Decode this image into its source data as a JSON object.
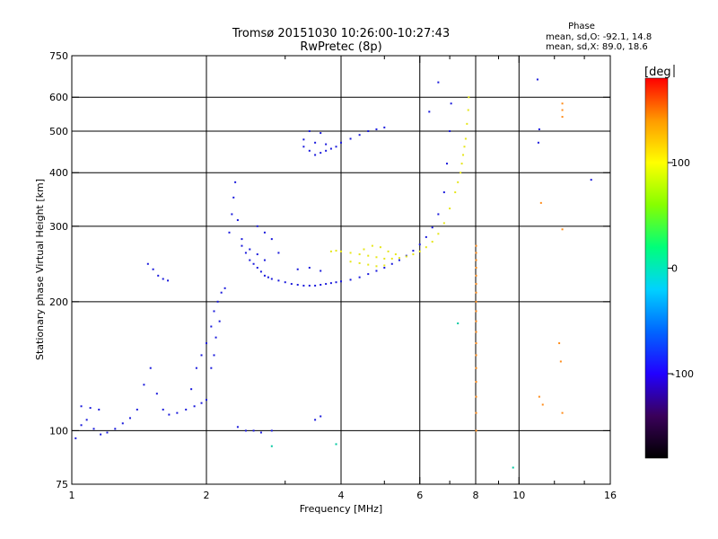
{
  "chart_data": {
    "type": "scatter",
    "title": "Tromsø 20151030 10:26:00-10:27:43",
    "subtitle": "RwPretec (8p)",
    "xlabel": "Frequency [MHz]",
    "ylabel": "Stationary phase Virtual Height [km]",
    "x_scale": "log2",
    "y_scale": "log",
    "xlim": [
      1,
      16
    ],
    "ylim": [
      75,
      750
    ],
    "x_ticks": [
      1,
      2,
      4,
      6,
      8,
      10,
      16
    ],
    "x_tick_labels": [
      "1",
      "2",
      "4",
      "6",
      "8",
      "10",
      "16"
    ],
    "x_grid": [
      2,
      4,
      6,
      8,
      10
    ],
    "y_ticks": [
      75,
      100,
      200,
      300,
      400,
      500,
      600,
      750
    ],
    "y_tick_labels": [
      "75",
      "100",
      "200",
      "300",
      "400",
      "500",
      "600",
      "750"
    ],
    "y_grid": [
      100,
      200,
      300,
      400,
      500,
      600
    ],
    "grid": true,
    "phase_stats": {
      "title": "Phase",
      "o_line": "mean, sd,O: -92.1, 14.8",
      "x_line": "mean, sd,X:  89.0, 18.6"
    },
    "colorbar": {
      "label": "[deg",
      "range": [
        -180,
        180
      ],
      "ticks": [
        100,
        0,
        -100
      ],
      "tick_labels": [
        "100",
        "0",
        "-100"
      ],
      "colormap": [
        "#000000",
        "#3a005a",
        "#2200ff",
        "#0066ff",
        "#00d2ff",
        "#00ff7a",
        "#86ff00",
        "#ffff00",
        "#ff9a00",
        "#ff0000"
      ]
    },
    "series": [
      {
        "phase": -100,
        "color": "#1a1adc",
        "points": [
          [
            1.02,
            96
          ],
          [
            1.05,
            103
          ],
          [
            1.08,
            106
          ],
          [
            1.12,
            101
          ],
          [
            1.16,
            98
          ],
          [
            1.2,
            99
          ],
          [
            1.25,
            101
          ],
          [
            1.3,
            104
          ],
          [
            1.35,
            107
          ],
          [
            1.4,
            112
          ],
          [
            1.45,
            128
          ],
          [
            1.5,
            140
          ],
          [
            1.55,
            122
          ],
          [
            1.6,
            112
          ],
          [
            1.65,
            109
          ],
          [
            1.72,
            110
          ],
          [
            1.8,
            112
          ],
          [
            1.88,
            114
          ],
          [
            1.95,
            116
          ],
          [
            2.0,
            118
          ],
          [
            1.05,
            114
          ],
          [
            1.1,
            113
          ],
          [
            1.15,
            112
          ],
          [
            1.48,
            245
          ],
          [
            1.52,
            238
          ],
          [
            1.56,
            230
          ],
          [
            1.6,
            226
          ],
          [
            1.64,
            224
          ],
          [
            1.85,
            125
          ],
          [
            1.9,
            140
          ],
          [
            1.95,
            150
          ],
          [
            2.0,
            160
          ],
          [
            2.05,
            175
          ],
          [
            2.08,
            190
          ],
          [
            2.12,
            200
          ],
          [
            2.16,
            210
          ],
          [
            2.2,
            215
          ],
          [
            2.05,
            140
          ],
          [
            2.08,
            150
          ],
          [
            2.1,
            165
          ],
          [
            2.14,
            180
          ],
          [
            2.25,
            290
          ],
          [
            2.28,
            320
          ],
          [
            2.3,
            350
          ],
          [
            2.32,
            380
          ],
          [
            2.35,
            310
          ],
          [
            2.4,
            280
          ],
          [
            2.45,
            260
          ],
          [
            2.5,
            250
          ],
          [
            2.55,
            245
          ],
          [
            2.6,
            240
          ],
          [
            2.65,
            235
          ],
          [
            2.7,
            230
          ],
          [
            2.75,
            228
          ],
          [
            2.8,
            226
          ],
          [
            2.9,
            224
          ],
          [
            3.0,
            222
          ],
          [
            3.1,
            220
          ],
          [
            3.2,
            219
          ],
          [
            3.3,
            218
          ],
          [
            3.4,
            218
          ],
          [
            3.5,
            218
          ],
          [
            3.6,
            219
          ],
          [
            3.7,
            220
          ],
          [
            3.8,
            221
          ],
          [
            3.9,
            222
          ],
          [
            4.0,
            223
          ],
          [
            4.2,
            225
          ],
          [
            4.4,
            228
          ],
          [
            4.6,
            232
          ],
          [
            4.8,
            236
          ],
          [
            5.0,
            240
          ],
          [
            5.2,
            245
          ],
          [
            5.4,
            250
          ],
          [
            5.6,
            256
          ],
          [
            5.8,
            263
          ],
          [
            6.0,
            272
          ],
          [
            6.2,
            283
          ],
          [
            6.4,
            298
          ],
          [
            6.6,
            320
          ],
          [
            6.8,
            360
          ],
          [
            6.9,
            420
          ],
          [
            7.0,
            500
          ],
          [
            7.05,
            580
          ],
          [
            2.4,
            270
          ],
          [
            2.5,
            265
          ],
          [
            2.6,
            258
          ],
          [
            2.7,
            250
          ],
          [
            3.2,
            238
          ],
          [
            3.4,
            240
          ],
          [
            3.6,
            236
          ],
          [
            2.6,
            300
          ],
          [
            2.7,
            290
          ],
          [
            2.8,
            280
          ],
          [
            2.9,
            260
          ],
          [
            3.3,
            460
          ],
          [
            3.4,
            450
          ],
          [
            3.5,
            440
          ],
          [
            3.6,
            445
          ],
          [
            3.7,
            450
          ],
          [
            3.8,
            455
          ],
          [
            3.9,
            460
          ],
          [
            4.0,
            470
          ],
          [
            4.2,
            480
          ],
          [
            4.4,
            490
          ],
          [
            4.6,
            500
          ],
          [
            4.8,
            505
          ],
          [
            5.0,
            510
          ],
          [
            3.4,
            500
          ],
          [
            3.6,
            495
          ],
          [
            2.35,
            102
          ],
          [
            2.45,
            100
          ],
          [
            2.55,
            100
          ],
          [
            2.65,
            99
          ],
          [
            2.8,
            100
          ],
          [
            3.5,
            106
          ],
          [
            3.6,
            108
          ],
          [
            3.3,
            478
          ],
          [
            3.5,
            470
          ],
          [
            3.7,
            466
          ],
          [
            6.3,
            555
          ],
          [
            6.6,
            650
          ],
          [
            11.0,
            660
          ],
          [
            11.1,
            505
          ],
          [
            11.05,
            470
          ],
          [
            14.5,
            385
          ]
        ]
      },
      {
        "phase": 85,
        "color": "#e6e61a",
        "points": [
          [
            3.8,
            262
          ],
          [
            3.9,
            263
          ],
          [
            4.0,
            262
          ],
          [
            4.2,
            260
          ],
          [
            4.4,
            258
          ],
          [
            4.6,
            256
          ],
          [
            4.8,
            254
          ],
          [
            5.0,
            252
          ],
          [
            5.2,
            252
          ],
          [
            5.4,
            253
          ],
          [
            5.6,
            255
          ],
          [
            5.8,
            258
          ],
          [
            6.0,
            262
          ],
          [
            6.2,
            268
          ],
          [
            6.4,
            276
          ],
          [
            6.6,
            288
          ],
          [
            6.8,
            305
          ],
          [
            7.0,
            330
          ],
          [
            7.2,
            360
          ],
          [
            7.4,
            400
          ],
          [
            7.5,
            440
          ],
          [
            7.6,
            480
          ],
          [
            7.65,
            520
          ],
          [
            7.7,
            560
          ],
          [
            7.72,
            600
          ],
          [
            4.5,
            265
          ],
          [
            4.7,
            270
          ],
          [
            4.9,
            268
          ],
          [
            5.1,
            262
          ],
          [
            5.3,
            258
          ],
          [
            7.3,
            380
          ],
          [
            7.45,
            420
          ],
          [
            7.55,
            460
          ],
          [
            4.2,
            248
          ],
          [
            4.4,
            246
          ],
          [
            4.6,
            244
          ],
          [
            4.8,
            242
          ],
          [
            5.0,
            243
          ]
        ]
      },
      {
        "phase": 135,
        "color": "#ff8c1a",
        "points": [
          [
            8.02,
            200
          ],
          [
            8.02,
            190
          ],
          [
            8.02,
            180
          ],
          [
            8.02,
            170
          ],
          [
            8.02,
            160
          ],
          [
            8.02,
            150
          ],
          [
            8.02,
            140
          ],
          [
            8.02,
            130
          ],
          [
            8.02,
            120
          ],
          [
            8.02,
            110
          ],
          [
            8.02,
            100
          ],
          [
            8.02,
            210
          ],
          [
            8.02,
            220
          ],
          [
            8.02,
            230
          ],
          [
            8.02,
            240
          ],
          [
            8.02,
            250
          ],
          [
            8.02,
            260
          ],
          [
            8.02,
            270
          ],
          [
            12.5,
            580
          ],
          [
            12.5,
            560
          ],
          [
            12.5,
            540
          ],
          [
            12.5,
            295
          ],
          [
            11.2,
            340
          ],
          [
            11.3,
            115
          ],
          [
            11.1,
            120
          ],
          [
            12.5,
            110
          ],
          [
            12.4,
            145
          ],
          [
            12.3,
            160
          ]
        ]
      },
      {
        "phase": 10,
        "color": "#00c8a0",
        "points": [
          [
            9.7,
            82
          ],
          [
            7.3,
            178
          ],
          [
            3.9,
            93
          ],
          [
            2.8,
            92
          ]
        ]
      }
    ]
  }
}
